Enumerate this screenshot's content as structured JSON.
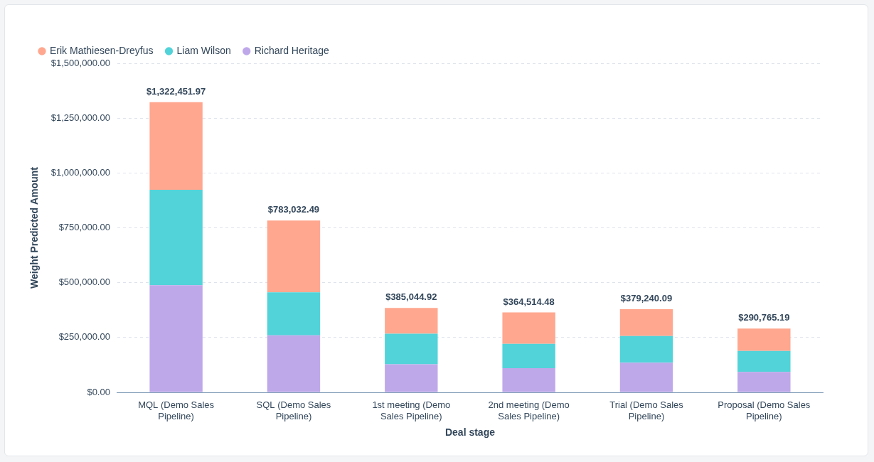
{
  "chart_data": {
    "type": "bar",
    "stacked": true,
    "x_label": "Deal stage",
    "y_label": "Weight Predicted Amount",
    "categories": [
      "MQL (Demo Sales Pipeline)",
      "SQL (Demo Sales Pipeline)",
      "1st meeting (Demo Sales Pipeline)",
      "2nd meeting (Demo Sales Pipeline)",
      "Trial (Demo Sales Pipeline)",
      "Proposal (Demo Sales Pipeline)"
    ],
    "series": [
      {
        "name": "Erik Mathiesen-Dreyfus",
        "color": "#ffa78f",
        "values": [
          399451.97,
          327032.49,
          118044.92,
          143514.48,
          122740.09,
          101765.19
        ]
      },
      {
        "name": "Liam Wilson",
        "color": "#51d3d9",
        "values": [
          435000,
          196000,
          139000,
          111000,
          121500,
          96000
        ]
      },
      {
        "name": "Richard Heritage",
        "color": "#bea8ea",
        "values": [
          488000,
          260000,
          128000,
          110000,
          135000,
          93000
        ]
      }
    ],
    "totals": [
      1322451.97,
      783032.49,
      385044.92,
      364514.48,
      379240.09,
      290765.19
    ],
    "total_labels": [
      "$1,322,451.97",
      "$783,032.49",
      "$385,044.92",
      "$364,514.48",
      "$379,240.09",
      "$290,765.19"
    ],
    "ylim": [
      0,
      1500000
    ],
    "yticks": [
      {
        "value": 0,
        "label": "$0.00"
      },
      {
        "value": 250000,
        "label": "$250,000.00"
      },
      {
        "value": 500000,
        "label": "$500,000.00"
      },
      {
        "value": 750000,
        "label": "$750,000.00"
      },
      {
        "value": 1000000,
        "label": "$1,000,000.00"
      },
      {
        "value": 1250000,
        "label": "$1,250,000.00"
      },
      {
        "value": 1500000,
        "label": "$1,500,000.00"
      }
    ],
    "grid": true,
    "legend": "top-left"
  }
}
